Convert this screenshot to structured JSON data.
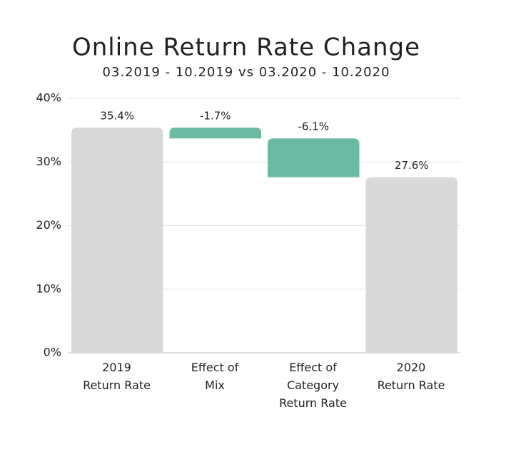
{
  "chart_data": {
    "type": "waterfall",
    "title": "Online Return Rate Change",
    "subtitle": "03.2019 - 10.2019 vs 03.2020 - 10.2020",
    "categories": [
      "2019\nReturn Rate",
      "Effect of\nMix",
      "Effect of\nCategory\nReturn Rate",
      "2020\nReturn Rate"
    ],
    "values": [
      35.4,
      -1.7,
      -6.1,
      27.6
    ],
    "value_labels": [
      "35.4%",
      "-1.7%",
      "-6.1%",
      "27.6%"
    ],
    "is_total": [
      true,
      false,
      false,
      true
    ],
    "colors": [
      "#d9d9d9",
      "#6bbba4",
      "#6bbba4",
      "#d9d9d9"
    ],
    "ylim": [
      0,
      40
    ],
    "yticks": [
      {
        "value": 0,
        "label": "0%"
      },
      {
        "value": 10,
        "label": "10%"
      },
      {
        "value": 20,
        "label": "20%"
      },
      {
        "value": 30,
        "label": "30%"
      },
      {
        "value": 40,
        "label": "40%"
      }
    ],
    "grid": true
  }
}
